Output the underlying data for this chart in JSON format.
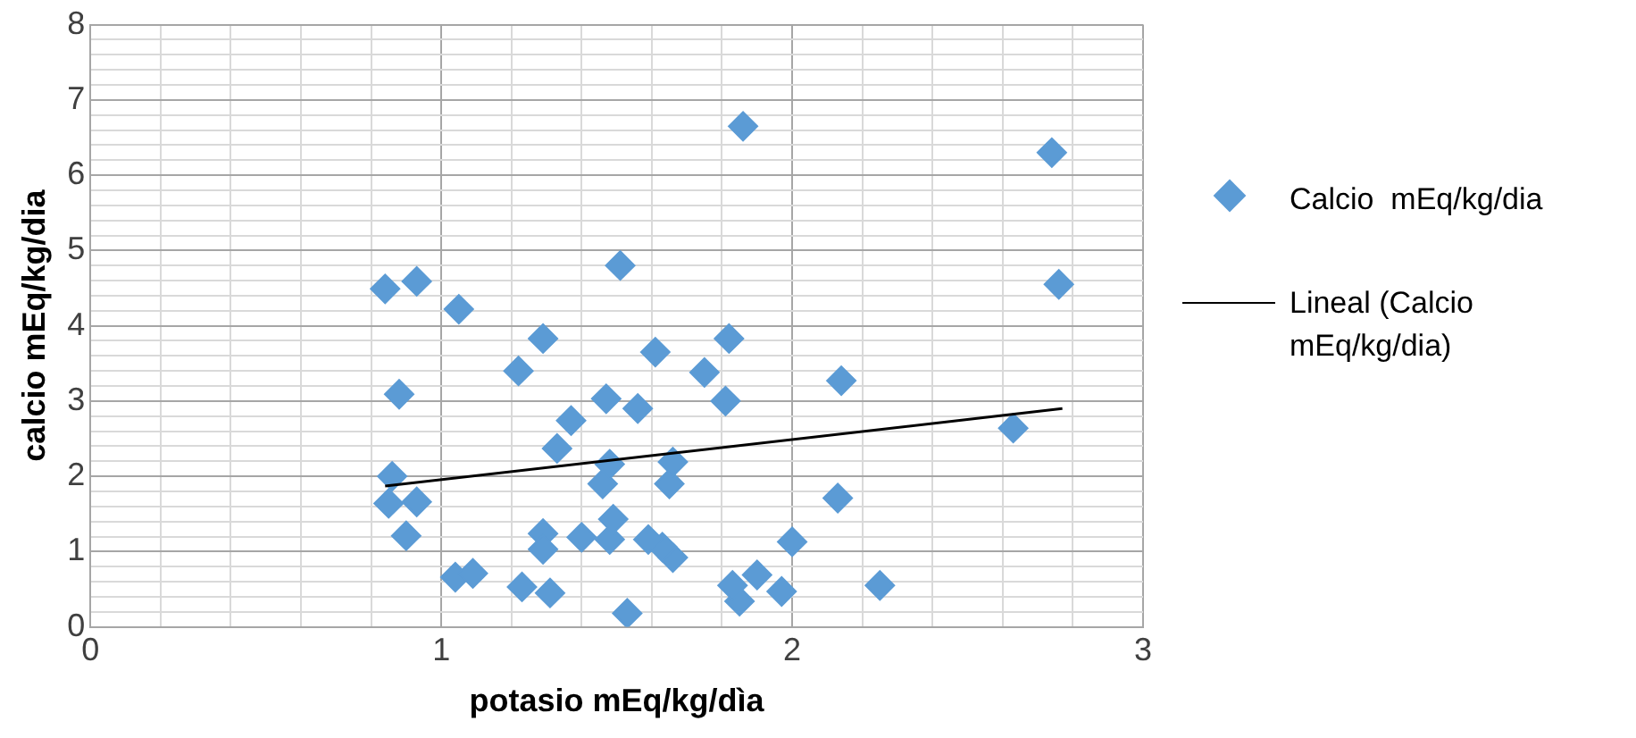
{
  "chart_data": {
    "type": "scatter",
    "xlabel": "potasio mEq/kg/dìa",
    "ylabel": "calcio mEq/kg/dia",
    "xlim": [
      0,
      3
    ],
    "ylim": [
      0,
      8
    ],
    "xticks": [
      0,
      {
        "value": 0.2,
        "label": null
      },
      {
        "value": 0.4,
        "label": null
      },
      {
        "value": 0.6,
        "label": null
      },
      {
        "value": 0.8,
        "label": null
      },
      1,
      {
        "value": 1.2,
        "label": null
      },
      {
        "value": 1.4,
        "label": null
      },
      {
        "value": 1.6,
        "label": null
      },
      {
        "value": 1.8,
        "label": null
      },
      2,
      {
        "value": 2.2,
        "label": null
      },
      {
        "value": 2.4,
        "label": null
      },
      {
        "value": 2.6,
        "label": null
      },
      {
        "value": 2.8,
        "label": null
      },
      3
    ],
    "yticks": [
      0,
      {
        "value": 0.2,
        "label": null
      },
      {
        "value": 0.4,
        "label": null
      },
      {
        "value": 0.6,
        "label": null
      },
      {
        "value": 0.8,
        "label": null
      },
      1,
      {
        "value": 1.2,
        "label": null
      },
      {
        "value": 1.4,
        "label": null
      },
      {
        "value": 1.6,
        "label": null
      },
      {
        "value": 1.8,
        "label": null
      },
      2,
      {
        "value": 2.2,
        "label": null
      },
      {
        "value": 2.4,
        "label": null
      },
      {
        "value": 2.6,
        "label": null
      },
      {
        "value": 2.8,
        "label": null
      },
      3,
      {
        "value": 3.2,
        "label": null
      },
      {
        "value": 3.4,
        "label": null
      },
      {
        "value": 3.6,
        "label": null
      },
      {
        "value": 3.8,
        "label": null
      },
      4,
      {
        "value": 4.2,
        "label": null
      },
      {
        "value": 4.4,
        "label": null
      },
      {
        "value": 4.6,
        "label": null
      },
      {
        "value": 4.8,
        "label": null
      },
      5,
      {
        "value": 5.2,
        "label": null
      },
      {
        "value": 5.4,
        "label": null
      },
      {
        "value": 5.6,
        "label": null
      },
      {
        "value": 5.8,
        "label": null
      },
      6,
      {
        "value": 6.2,
        "label": null
      },
      {
        "value": 6.4,
        "label": null
      },
      {
        "value": 6.6,
        "label": null
      },
      {
        "value": 6.8,
        "label": null
      },
      7,
      {
        "value": 7.2,
        "label": null
      },
      {
        "value": 7.4,
        "label": null
      },
      {
        "value": 7.6,
        "label": null
      },
      {
        "value": 7.8,
        "label": null
      },
      8
    ],
    "grid": true,
    "legend": "right",
    "marker": "diamond",
    "series": [
      {
        "name": "Calcio  mEq/kg/dia",
        "color": "#5b9bd5",
        "x": [
          0.84,
          0.93,
          1.05,
          0.88,
          0.86,
          0.85,
          0.93,
          0.9,
          1.04,
          1.09,
          1.22,
          1.29,
          1.23,
          1.31,
          1.29,
          1.29,
          1.4,
          1.51,
          1.33,
          1.37,
          1.47,
          1.56,
          1.61,
          1.75,
          1.82,
          1.81,
          1.86,
          2.14,
          2.74,
          2.76,
          2.63,
          2.13,
          2.25,
          2.0,
          1.97,
          1.9,
          1.85,
          1.83,
          1.66,
          1.63,
          1.59,
          1.53,
          1.48,
          1.49,
          1.46,
          1.48,
          1.65,
          1.66
        ],
        "values": [
          4.49,
          4.59,
          4.22,
          3.09,
          2.0,
          1.64,
          1.66,
          1.21,
          0.66,
          0.71,
          3.4,
          3.83,
          0.53,
          0.45,
          1.24,
          1.03,
          1.19,
          4.8,
          2.37,
          2.74,
          3.03,
          2.9,
          3.65,
          3.38,
          3.83,
          3.0,
          6.65,
          3.27,
          6.3,
          4.55,
          2.64,
          1.71,
          0.55,
          1.13,
          0.47,
          0.69,
          0.34,
          0.55,
          0.92,
          1.06,
          1.16,
          0.18,
          1.16,
          1.43,
          1.9,
          2.16,
          1.9,
          2.19
        ]
      },
      {
        "name": "Lineal (Calcio mEq/kg/dia)",
        "color": "#000000",
        "type": "line",
        "marker": "none",
        "line_style": "solid",
        "x": [
          0.84,
          2.77
        ],
        "values": [
          1.87,
          2.9
        ]
      }
    ]
  }
}
